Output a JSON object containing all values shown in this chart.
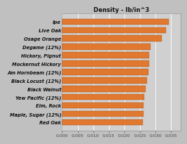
{
  "title": "Density - lb/in^3",
  "categories": [
    "Red Oak",
    "Maple, Sugar (12%)",
    "Elm, Rock",
    "Yew Pacific (12%)",
    "Black Walnut",
    "Black Locust (12%)",
    "Am Hornbeam (12%)",
    "Mockernut Hickory",
    "Hickory, Pignut",
    "Degame (12%)",
    "Osage Orange",
    "Live Oak",
    "Ipe"
  ],
  "values": [
    0.0258,
    0.0262,
    0.0262,
    0.0263,
    0.0268,
    0.0272,
    0.0277,
    0.028,
    0.028,
    0.0283,
    0.032,
    0.0333,
    0.0342
  ],
  "bar_color": "#E07830",
  "bar_edge_color": "#A85010",
  "bg_color": "#C0C0C0",
  "plot_bg_color": "#D0D0D0",
  "grid_color": "#FFFFFF",
  "xlim": [
    0.0,
    0.038
  ],
  "xticks": [
    0.0,
    0.005,
    0.01,
    0.015,
    0.02,
    0.025,
    0.03,
    0.035
  ],
  "title_fontsize": 6,
  "label_fontsize": 4.8,
  "tick_fontsize": 4.5
}
